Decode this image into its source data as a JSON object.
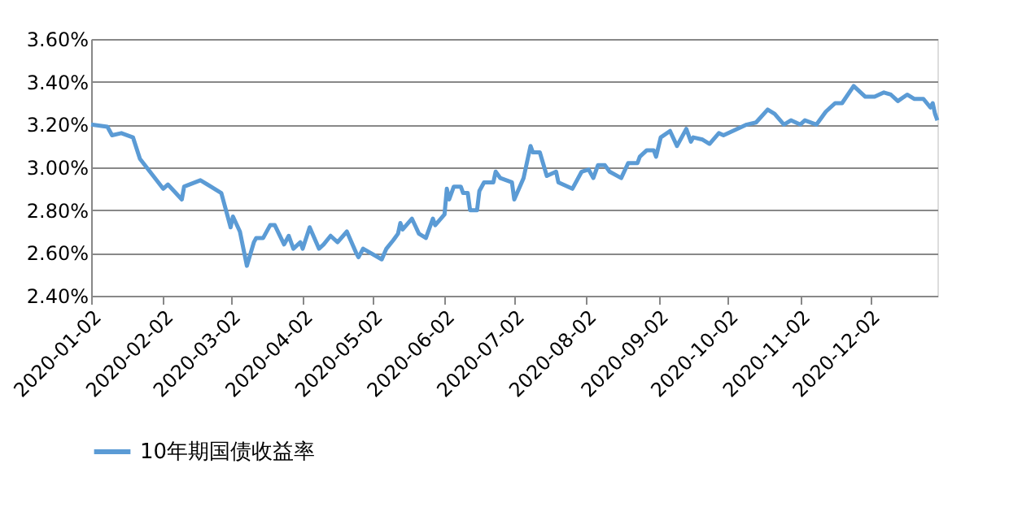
{
  "chart_data": {
    "type": "line",
    "x": [
      "2020-01-02",
      "2020-01-09",
      "2020-01-11",
      "2020-01-15",
      "2020-01-20",
      "2020-01-23",
      "2020-02-02",
      "2020-02-04",
      "2020-02-10",
      "2020-02-11",
      "2020-02-18",
      "2020-02-27",
      "2020-03-02",
      "2020-03-03",
      "2020-03-06",
      "2020-03-09",
      "2020-03-12",
      "2020-03-13",
      "2020-03-16",
      "2020-03-19",
      "2020-03-21",
      "2020-03-25",
      "2020-03-27",
      "2020-03-29",
      "2020-04-01",
      "2020-04-02",
      "2020-04-05",
      "2020-04-09",
      "2020-04-11",
      "2020-04-14",
      "2020-04-17",
      "2020-04-21",
      "2020-04-25",
      "2020-04-26",
      "2020-04-28",
      "2020-05-06",
      "2020-05-08",
      "2020-05-11",
      "2020-05-13",
      "2020-05-14",
      "2020-05-15",
      "2020-05-19",
      "2020-05-22",
      "2020-05-25",
      "2020-05-28",
      "2020-05-29",
      "2020-06-02",
      "2020-06-03",
      "2020-06-04",
      "2020-06-06",
      "2020-06-09",
      "2020-06-10",
      "2020-06-12",
      "2020-06-13",
      "2020-06-16",
      "2020-06-17",
      "2020-06-19",
      "2020-06-23",
      "2020-06-24",
      "2020-06-26",
      "2020-07-01",
      "2020-07-02",
      "2020-07-06",
      "2020-07-08",
      "2020-07-09",
      "2020-07-10",
      "2020-07-13",
      "2020-07-16",
      "2020-07-20",
      "2020-07-21",
      "2020-07-27",
      "2020-07-31",
      "2020-08-03",
      "2020-08-05",
      "2020-08-07",
      "2020-08-10",
      "2020-08-12",
      "2020-08-17",
      "2020-08-20",
      "2020-08-24",
      "2020-08-25",
      "2020-08-28",
      "2020-08-31",
      "2020-09-01",
      "2020-09-03",
      "2020-09-07",
      "2020-09-10",
      "2020-09-14",
      "2020-09-16",
      "2020-09-17",
      "2020-09-21",
      "2020-09-24",
      "2020-09-28",
      "2020-09-30",
      "2020-10-10",
      "2020-10-14",
      "2020-10-19",
      "2020-10-22",
      "2020-10-26",
      "2020-10-29",
      "2020-11-02",
      "2020-11-04",
      "2020-11-09",
      "2020-11-13",
      "2020-11-17",
      "2020-11-20",
      "2020-11-25",
      "2020-11-30",
      "2020-12-04",
      "2020-12-08",
      "2020-12-11",
      "2020-12-14",
      "2020-12-18",
      "2020-12-21",
      "2020-12-25",
      "2020-12-28",
      "2020-12-29",
      "2020-12-30",
      "2020-12-31"
    ],
    "series": [
      {
        "name": "10年期国债收益率",
        "color": "#5b9bd5",
        "values": [
          3.2,
          3.19,
          3.15,
          3.16,
          3.14,
          3.04,
          2.9,
          2.92,
          2.85,
          2.91,
          2.94,
          2.88,
          2.72,
          2.77,
          2.7,
          2.54,
          2.65,
          2.67,
          2.67,
          2.73,
          2.73,
          2.64,
          2.68,
          2.62,
          2.65,
          2.62,
          2.72,
          2.62,
          2.64,
          2.68,
          2.65,
          2.7,
          2.6,
          2.58,
          2.62,
          2.57,
          2.62,
          2.66,
          2.69,
          2.74,
          2.71,
          2.76,
          2.69,
          2.67,
          2.76,
          2.73,
          2.78,
          2.9,
          2.85,
          2.91,
          2.91,
          2.88,
          2.88,
          2.8,
          2.8,
          2.89,
          2.93,
          2.93,
          2.98,
          2.95,
          2.93,
          2.85,
          2.95,
          3.05,
          3.1,
          3.07,
          3.07,
          2.96,
          2.98,
          2.93,
          2.9,
          2.98,
          2.99,
          2.95,
          3.01,
          3.01,
          2.98,
          2.95,
          3.02,
          3.02,
          3.05,
          3.08,
          3.08,
          3.05,
          3.14,
          3.17,
          3.1,
          3.18,
          3.12,
          3.14,
          3.13,
          3.11,
          3.16,
          3.15,
          3.2,
          3.21,
          3.27,
          3.25,
          3.2,
          3.22,
          3.2,
          3.22,
          3.2,
          3.26,
          3.3,
          3.3,
          3.38,
          3.33,
          3.33,
          3.35,
          3.34,
          3.31,
          3.34,
          3.32,
          3.32,
          3.28,
          3.3,
          3.25,
          3.22
        ]
      }
    ],
    "xlim": [
      "2020-01-02",
      "2020-12-31"
    ],
    "xticks": [
      "2020-01-02",
      "2020-02-02",
      "2020-03-02",
      "2020-04-02",
      "2020-05-02",
      "2020-06-02",
      "2020-07-02",
      "2020-08-02",
      "2020-09-02",
      "2020-10-02",
      "2020-11-02",
      "2020-12-02"
    ],
    "ylim": [
      2.4,
      3.6
    ],
    "yticks": [
      {
        "value": 2.4,
        "label": "2.40%"
      },
      {
        "value": 2.6,
        "label": "2.60%"
      },
      {
        "value": 2.8,
        "label": "2.80%"
      },
      {
        "value": 3.0,
        "label": "3.00%"
      },
      {
        "value": 3.2,
        "label": "3.20%"
      },
      {
        "value": 3.4,
        "label": "3.40%"
      },
      {
        "value": 3.6,
        "label": "3.60%"
      }
    ],
    "grid": "y",
    "legend": "bottom",
    "marker": "none",
    "line_style": "solid"
  }
}
